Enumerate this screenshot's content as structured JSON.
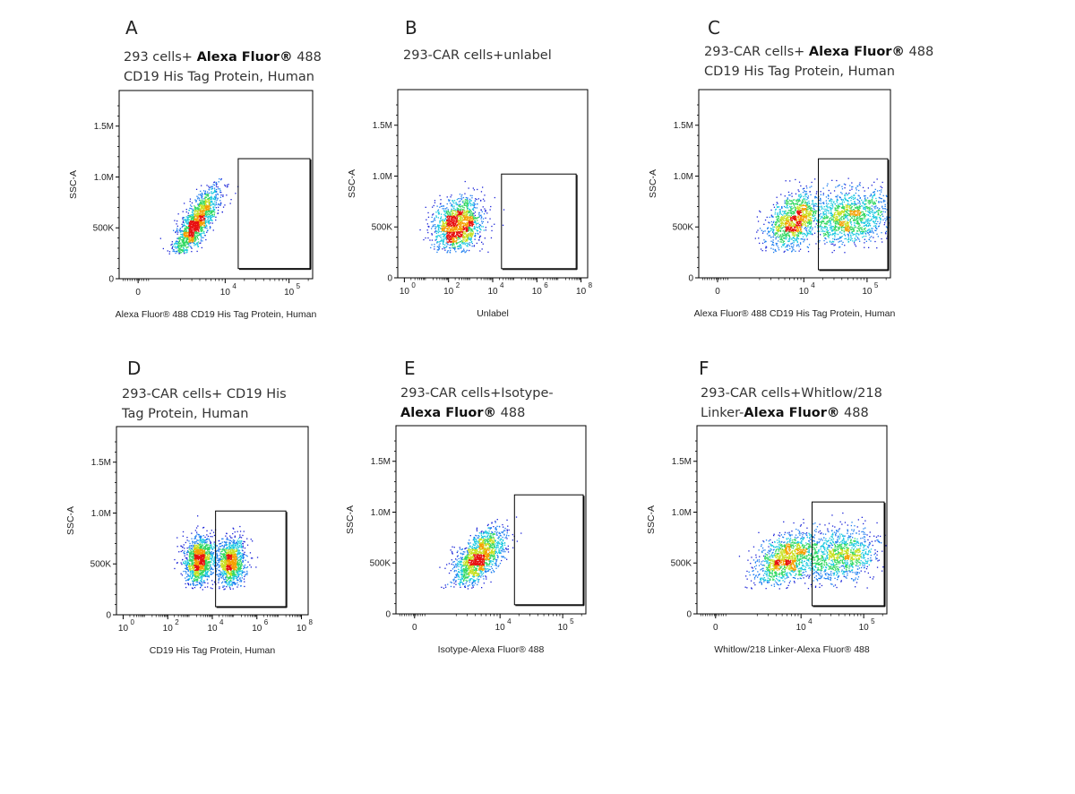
{
  "figure": {
    "background": "#ffffff"
  },
  "chart_data": [
    {
      "type": "scatter",
      "panel": "A",
      "title_lines": [
        [
          {
            "text": "293  cells+ "
          },
          {
            "text": "Alexa  Fluor®",
            "bold": true
          },
          {
            "text": " 488"
          }
        ],
        [
          {
            "text": "CD19 His Tag Protein, Human"
          }
        ]
      ],
      "xlabel": "Alexa Fluor® 488 CD19 His Tag Protein, Human",
      "ylabel": "SSC-A",
      "x_scale": "biexponential",
      "x_ticks": [
        {
          "base": "0",
          "exp": ""
        },
        {
          "base": "10",
          "exp": "4"
        },
        {
          "base": "10",
          "exp": "5"
        }
      ],
      "y_ticks": [
        "0",
        "500K",
        "1.0M",
        "1.5M"
      ],
      "ylim": [
        0,
        1850000
      ],
      "gate": {
        "x_range": [
          16000,
          420000
        ],
        "y_range": [
          100000,
          1180000
        ]
      },
      "populations": [
        {
          "x_center": 3500,
          "x_spread": 0.18,
          "y_center": 560000,
          "y_spread": 170000,
          "corr": 0.8,
          "n": 1500
        }
      ]
    },
    {
      "type": "scatter",
      "panel": "B",
      "title_lines": [
        [
          {
            "text": "293-CAR cells+unlabel"
          }
        ]
      ],
      "xlabel": "Unlabel",
      "ylabel": "SSC-A",
      "x_scale": "log",
      "x_ticks": [
        {
          "base": "10",
          "exp": "0"
        },
        {
          "base": "10",
          "exp": "2"
        },
        {
          "base": "10",
          "exp": "4"
        },
        {
          "base": "10",
          "exp": "6"
        },
        {
          "base": "10",
          "exp": "8"
        }
      ],
      "y_ticks": [
        "0",
        "500K",
        "1.0M",
        "1.5M"
      ],
      "ylim": [
        0,
        1850000
      ],
      "gate": {
        "x_range": [
          25000,
          60000000
        ],
        "y_range": [
          90000,
          1020000
        ]
      },
      "populations": [
        {
          "x_center": 250,
          "x_spread": 0.55,
          "y_center": 520000,
          "y_spread": 130000,
          "corr": 0.15,
          "n": 1500
        }
      ]
    },
    {
      "type": "scatter",
      "panel": "C",
      "title_lines": [
        [
          {
            "text": "293-CAR cells+ "
          },
          {
            "text": "Alexa Fluor®",
            "bold": true
          },
          {
            "text": " 488"
          }
        ],
        [
          {
            "text": "CD19 His Tag Protein, Human"
          }
        ]
      ],
      "xlabel": "Alexa Fluor® 488 CD19 His Tag Protein, Human",
      "ylabel": "SSC-A",
      "x_scale": "biexponential",
      "x_ticks": [
        {
          "base": "0",
          "exp": ""
        },
        {
          "base": "10",
          "exp": "4"
        },
        {
          "base": "10",
          "exp": "5"
        }
      ],
      "y_ticks": [
        "0",
        "500K",
        "1.0M",
        "1.5M"
      ],
      "ylim": [
        0,
        1850000
      ],
      "gate": {
        "x_range": [
          17000,
          440000
        ],
        "y_range": [
          80000,
          1170000
        ]
      },
      "populations": [
        {
          "x_center": 6500,
          "x_spread": 0.2,
          "y_center": 560000,
          "y_spread": 140000,
          "corr": 0.45,
          "n": 1100
        },
        {
          "x_center": 48000,
          "x_spread": 0.35,
          "y_center": 600000,
          "y_spread": 140000,
          "corr": 0.2,
          "n": 1400
        }
      ]
    },
    {
      "type": "scatter",
      "panel": "D",
      "title_lines": [
        [
          {
            "text": "293-CAR    cells+    CD19    His"
          }
        ],
        [
          {
            "text": "Tag Protein, Human"
          }
        ]
      ],
      "xlabel": "CD19 His Tag Protein, Human",
      "ylabel": "SSC-A",
      "x_scale": "log",
      "x_ticks": [
        {
          "base": "10",
          "exp": "0"
        },
        {
          "base": "10",
          "exp": "2"
        },
        {
          "base": "10",
          "exp": "4"
        },
        {
          "base": "10",
          "exp": "6"
        },
        {
          "base": "10",
          "exp": "8"
        }
      ],
      "y_ticks": [
        "0",
        "500K",
        "1.0M",
        "1.5M"
      ],
      "ylim": [
        0,
        1850000
      ],
      "gate": {
        "x_range": [
          14000,
          20000000
        ],
        "y_range": [
          80000,
          1020000
        ]
      },
      "populations": [
        {
          "x_center": 2500,
          "x_spread": 0.35,
          "y_center": 540000,
          "y_spread": 120000,
          "corr": 0.1,
          "n": 1300
        },
        {
          "x_center": 70000,
          "x_spread": 0.3,
          "y_center": 520000,
          "y_spread": 120000,
          "corr": 0.1,
          "n": 1100
        }
      ]
    },
    {
      "type": "scatter",
      "panel": "E",
      "title_lines": [
        [
          {
            "text": "293-CAR   cells+Isotype-"
          }
        ],
        [
          {
            "text": "Alexa Fluor®",
            "bold": true
          },
          {
            "text": " 488"
          }
        ]
      ],
      "xlabel": "Isotype-Alexa Fluor® 488",
      "ylabel": "SSC-A",
      "x_scale": "biexponential",
      "x_ticks": [
        {
          "base": "0",
          "exp": ""
        },
        {
          "base": "10",
          "exp": "4"
        },
        {
          "base": "10",
          "exp": "5"
        }
      ],
      "y_ticks": [
        "0",
        "500K",
        "1.0M",
        "1.5M"
      ],
      "ylim": [
        0,
        1850000
      ],
      "gate": {
        "x_range": [
          17000,
          440000
        ],
        "y_range": [
          90000,
          1170000
        ]
      },
      "populations": [
        {
          "x_center": 4500,
          "x_spread": 0.2,
          "y_center": 560000,
          "y_spread": 140000,
          "corr": 0.6,
          "n": 1500
        }
      ]
    },
    {
      "type": "scatter",
      "panel": "F",
      "title_lines": [
        [
          {
            "text": "293-CAR   cells+Whitlow/218"
          }
        ],
        [
          {
            "text": "Linker-"
          },
          {
            "text": "Alexa Fluor®",
            "bold": true
          },
          {
            "text": " 488"
          }
        ]
      ],
      "xlabel": "Whitlow/218 Linker-Alexa Fluor® 488",
      "ylabel": "SSC-A",
      "x_scale": "biexponential",
      "x_ticks": [
        {
          "base": "0",
          "exp": ""
        },
        {
          "base": "10",
          "exp": "4"
        },
        {
          "base": "10",
          "exp": "5"
        }
      ],
      "y_ticks": [
        "0",
        "500K",
        "1.0M",
        "1.5M"
      ],
      "ylim": [
        0,
        1850000
      ],
      "gate": {
        "x_range": [
          15000,
          260000
        ],
        "y_range": [
          80000,
          1100000
        ]
      },
      "populations": [
        {
          "x_center": 5500,
          "x_spread": 0.25,
          "y_center": 540000,
          "y_spread": 130000,
          "corr": 0.45,
          "n": 1200
        },
        {
          "x_center": 40000,
          "x_spread": 0.3,
          "y_center": 580000,
          "y_spread": 130000,
          "corr": 0.2,
          "n": 1100
        }
      ]
    }
  ],
  "density_colors": [
    "#1a22d8",
    "#1a7cf0",
    "#18c8e0",
    "#30d860",
    "#c8e020",
    "#f5a000",
    "#e81010"
  ]
}
